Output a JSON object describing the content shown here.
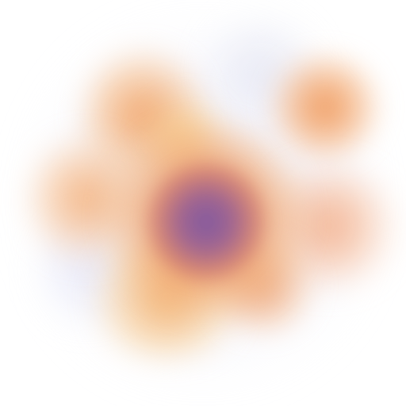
{
  "scene": {
    "description_label": "",
    "palette": {
      "background": "#ffffff",
      "haze": "#e2e3f5",
      "petal_orange": "#f0965a",
      "petal_yellow": "#fac878",
      "core_purple": "#825aa0"
    }
  }
}
